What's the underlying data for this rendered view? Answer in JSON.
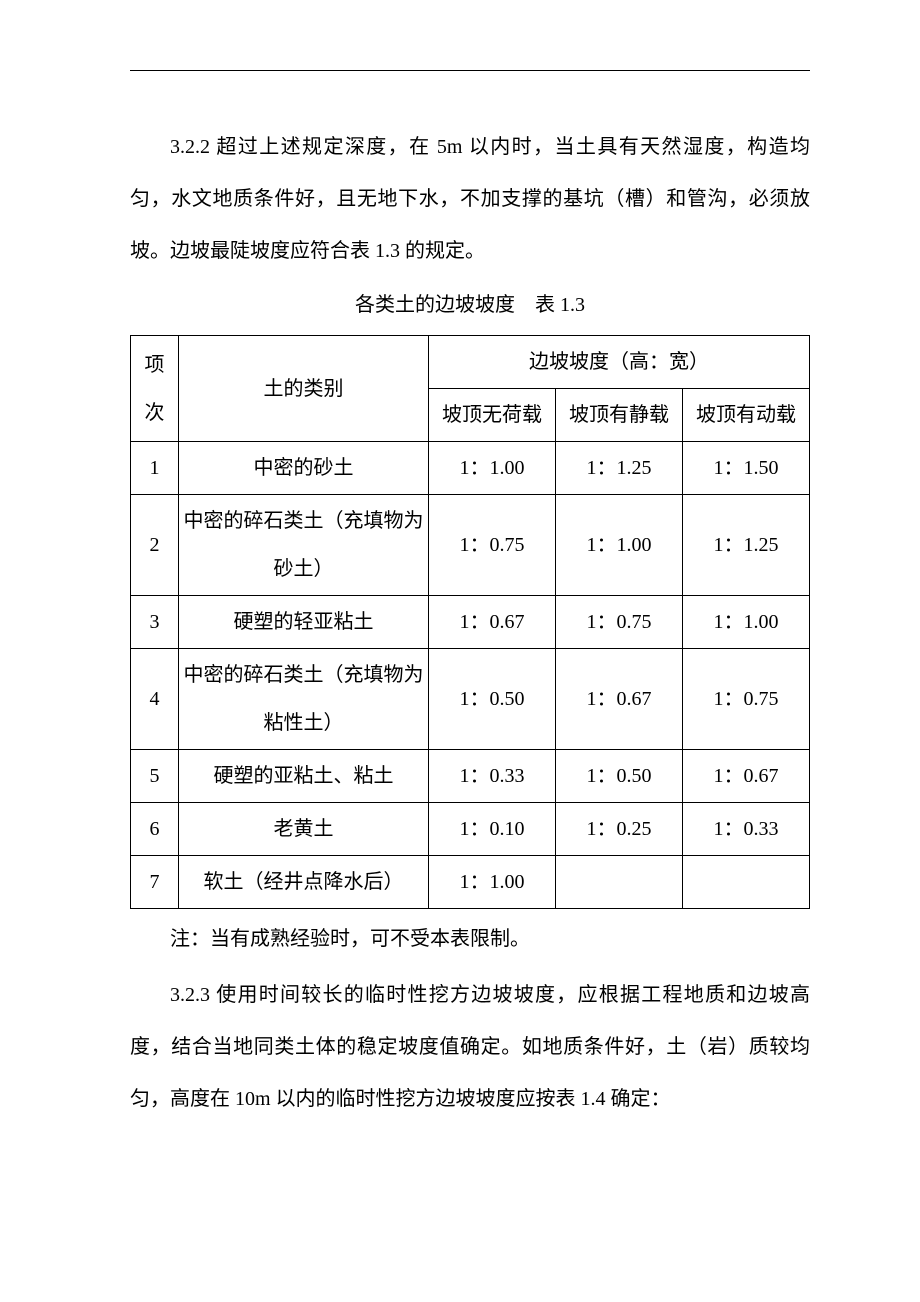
{
  "para1": "3.2.2 超过上述规定深度，在 5m 以内时，当土具有天然湿度，构造均匀，水文地质条件好，且无地下水，不加支撑的基坑（槽）和管沟，必须放坡。边坡最陡坡度应符合表 1.3 的规定。",
  "caption1": "各类土的边坡坡度　表 1.3",
  "table1": {
    "head_idx": "项次",
    "head_type": "土的类别",
    "head_group": "边坡坡度（高：宽）",
    "head_c1": "坡顶无荷载",
    "head_c2": "坡顶有静载",
    "head_c3": "坡顶有动载",
    "rows": [
      {
        "idx": "1",
        "type": "中密的砂土",
        "c1": "1：1.00",
        "c2": "1：1.25",
        "c3": "1：1.50"
      },
      {
        "idx": "2",
        "type": "中密的碎石类土（充填物为砂土）",
        "c1": "1：0.75",
        "c2": "1：1.00",
        "c3": "1：1.25"
      },
      {
        "idx": "3",
        "type": "硬塑的轻亚粘土",
        "c1": "1：0.67",
        "c2": "1：0.75",
        "c3": "1：1.00"
      },
      {
        "idx": "4",
        "type": "中密的碎石类土（充填物为粘性土）",
        "c1": "1：0.50",
        "c2": "1：0.67",
        "c3": "1：0.75"
      },
      {
        "idx": "5",
        "type": "硬塑的亚粘土、粘土",
        "c1": "1：0.33",
        "c2": "1：0.50",
        "c3": "1：0.67"
      },
      {
        "idx": "6",
        "type": "老黄土",
        "c1": "1：0.10",
        "c2": "1：0.25",
        "c3": "1：0.33"
      },
      {
        "idx": "7",
        "type": "软土（经井点降水后）",
        "c1": "1：1.00",
        "c2": "",
        "c3": ""
      }
    ]
  },
  "note1": "注：当有成熟经验时，可不受本表限制。",
  "para2": "3.2.3 使用时间较长的临时性挖方边坡坡度，应根据工程地质和边坡高度，结合当地同类土体的稳定坡度值确定。如地质条件好，土（岩）质较均匀，高度在 10m 以内的临时性挖方边坡坡度应按表 1.4 确定："
}
